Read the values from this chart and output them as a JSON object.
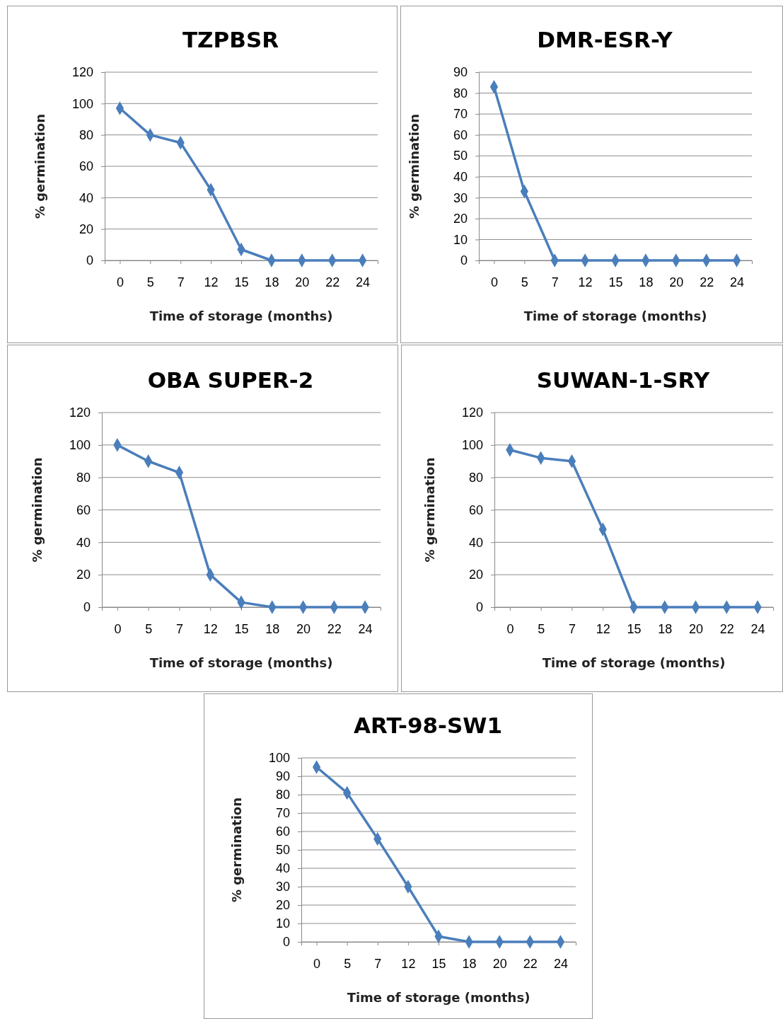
{
  "chart_data": [
    {
      "type": "line",
      "title": "TZPBSR",
      "xlabel": "Time of storage (months)",
      "ylabel": "% germination",
      "categories": [
        "0",
        "5",
        "7",
        "12",
        "15",
        "18",
        "20",
        "22",
        "24"
      ],
      "series": [
        {
          "color": "#4a7ebb",
          "values": [
            97,
            80,
            75,
            45,
            7,
            0,
            0,
            0,
            0
          ]
        }
      ],
      "ylim": [
        0,
        120
      ],
      "yticks": [
        0,
        20,
        40,
        60,
        80,
        100,
        120
      ],
      "grid": "y",
      "marker": "diamond"
    },
    {
      "type": "line",
      "title": "DMR-ESR-Y",
      "xlabel": "Time of storage (months)",
      "ylabel": "% germination",
      "categories": [
        "0",
        "5",
        "7",
        "12",
        "15",
        "18",
        "20",
        "22",
        "24"
      ],
      "series": [
        {
          "color": "#4a7ebb",
          "values": [
            83,
            33,
            0,
            0,
            0,
            0,
            0,
            0,
            0
          ]
        }
      ],
      "ylim": [
        0,
        90
      ],
      "yticks": [
        0,
        10,
        20,
        30,
        40,
        50,
        60,
        70,
        80,
        90
      ],
      "grid": "y",
      "marker": "diamond"
    },
    {
      "type": "line",
      "title": "OBA SUPER-2",
      "xlabel": "Time of storage (months)",
      "ylabel": "% germination",
      "categories": [
        "0",
        "5",
        "7",
        "12",
        "15",
        "18",
        "20",
        "22",
        "24"
      ],
      "series": [
        {
          "color": "#4a7ebb",
          "values": [
            100,
            90,
            83,
            20,
            3,
            0,
            0,
            0,
            0
          ]
        }
      ],
      "ylim": [
        0,
        120
      ],
      "yticks": [
        0,
        20,
        40,
        60,
        80,
        100,
        120
      ],
      "grid": "y",
      "marker": "diamond"
    },
    {
      "type": "line",
      "title": "SUWAN-1-SRY",
      "xlabel": "Time of storage (months)",
      "ylabel": "% germination",
      "categories": [
        "0",
        "5",
        "7",
        "12",
        "15",
        "18",
        "20",
        "22",
        "24"
      ],
      "series": [
        {
          "color": "#4a7ebb",
          "values": [
            97,
            92,
            90,
            48,
            0,
            0,
            0,
            0,
            0
          ]
        }
      ],
      "ylim": [
        0,
        120
      ],
      "yticks": [
        0,
        20,
        40,
        60,
        80,
        100,
        120
      ],
      "grid": "y",
      "marker": "diamond"
    },
    {
      "type": "line",
      "title": "ART-98-SW1",
      "xlabel": "Time of storage (months)",
      "ylabel": "% germination",
      "categories": [
        "0",
        "5",
        "7",
        "12",
        "15",
        "18",
        "20",
        "22",
        "24"
      ],
      "series": [
        {
          "color": "#4a7ebb",
          "values": [
            95,
            81,
            56,
            30,
            3,
            0,
            0,
            0,
            0
          ]
        }
      ],
      "ylim": [
        0,
        100
      ],
      "yticks": [
        0,
        10,
        20,
        30,
        40,
        50,
        60,
        70,
        80,
        90,
        100
      ],
      "grid": "y",
      "marker": "diamond"
    }
  ]
}
